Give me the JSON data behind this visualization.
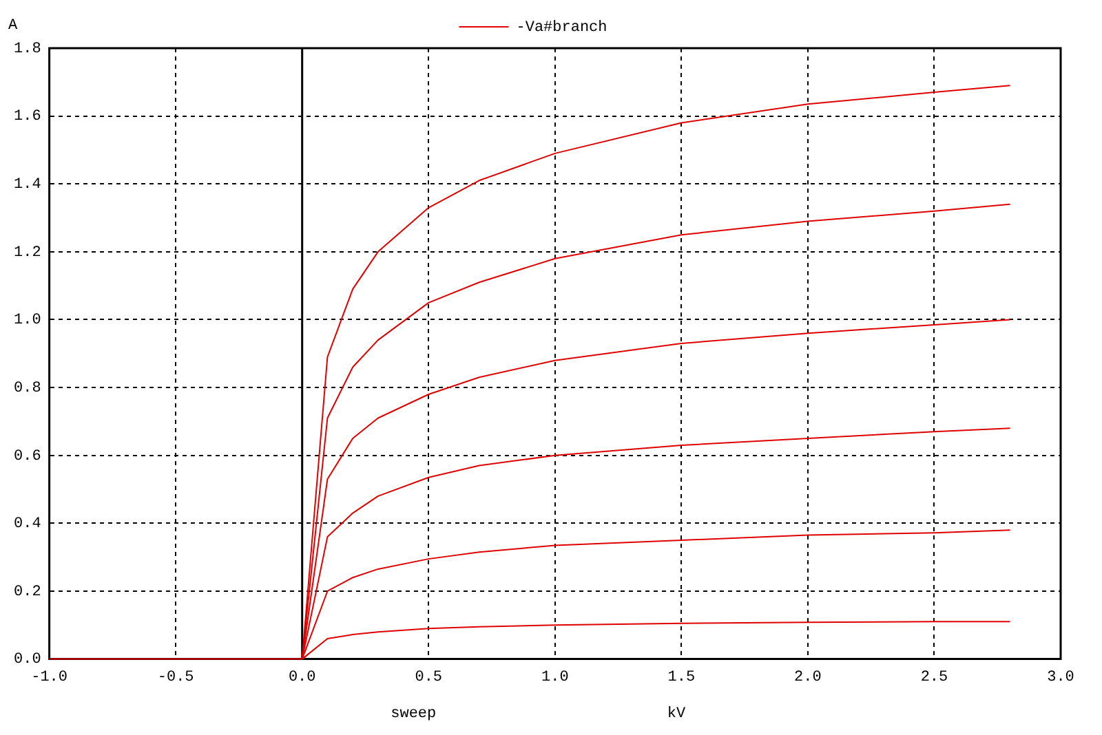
{
  "chart_data": {
    "type": "line",
    "ylabel": "A",
    "xlabel": "sweep",
    "annotations": [
      "kV"
    ],
    "xlim": [
      -1,
      3
    ],
    "xticks": [
      {
        "value": -1,
        "label": "-1.0"
      },
      {
        "value": -0.5,
        "label": "-0.5"
      },
      {
        "value": 0,
        "label": "0.0"
      },
      {
        "value": 0.5,
        "label": "0.5"
      },
      {
        "value": 1,
        "label": "1.0"
      },
      {
        "value": 1.5,
        "label": "1.5"
      },
      {
        "value": 2,
        "label": "2.0"
      },
      {
        "value": 2.5,
        "label": "2.5"
      },
      {
        "value": 3,
        "label": "3.0"
      }
    ],
    "ylim": [
      0,
      1.8
    ],
    "yticks": [
      {
        "value": 0,
        "label": "0.0"
      },
      {
        "value": 0.2,
        "label": "0.2"
      },
      {
        "value": 0.4,
        "label": "0.4"
      },
      {
        "value": 0.6,
        "label": "0.6"
      },
      {
        "value": 0.8,
        "label": "0.8"
      },
      {
        "value": 1,
        "label": "1.0"
      },
      {
        "value": 1.2,
        "label": "1.2"
      },
      {
        "value": 1.4,
        "label": "1.4"
      },
      {
        "value": 1.6,
        "label": "1.6"
      },
      {
        "value": 1.8,
        "label": "1.8"
      }
    ],
    "grid": true,
    "legend": "top",
    "marker": "none",
    "line_style": "solid",
    "ref_lines": [
      {
        "axis": "x",
        "value": 0,
        "color": "#000000"
      }
    ],
    "x": [
      -1,
      0,
      0.1,
      0.2,
      0.3,
      0.5,
      0.7,
      1.0,
      1.5,
      2.0,
      2.5,
      2.8
    ],
    "series": [
      {
        "name": "-Va#branch",
        "color": "#e00000",
        "values": [
          0,
          0,
          0.89,
          1.09,
          1.2,
          1.33,
          1.41,
          1.49,
          1.58,
          1.635,
          1.67,
          1.69
        ]
      },
      {
        "color": "#e00000",
        "values": [
          null,
          0,
          0.71,
          0.86,
          0.94,
          1.05,
          1.11,
          1.18,
          1.25,
          1.29,
          1.32,
          1.34
        ]
      },
      {
        "color": "#e00000",
        "values": [
          null,
          0,
          0.53,
          0.65,
          0.71,
          0.78,
          0.83,
          0.88,
          0.93,
          0.96,
          0.985,
          1.0
        ]
      },
      {
        "color": "#e00000",
        "values": [
          null,
          0,
          0.36,
          0.43,
          0.48,
          0.535,
          0.57,
          0.6,
          0.63,
          0.65,
          0.67,
          0.68
        ]
      },
      {
        "color": "#e00000",
        "values": [
          null,
          0,
          0.2,
          0.24,
          0.265,
          0.295,
          0.315,
          0.335,
          0.35,
          0.365,
          0.372,
          0.38
        ]
      },
      {
        "color": "#e00000",
        "values": [
          null,
          0,
          0.06,
          0.072,
          0.08,
          0.09,
          0.095,
          0.1,
          0.105,
          0.108,
          0.11,
          0.11
        ]
      }
    ]
  }
}
